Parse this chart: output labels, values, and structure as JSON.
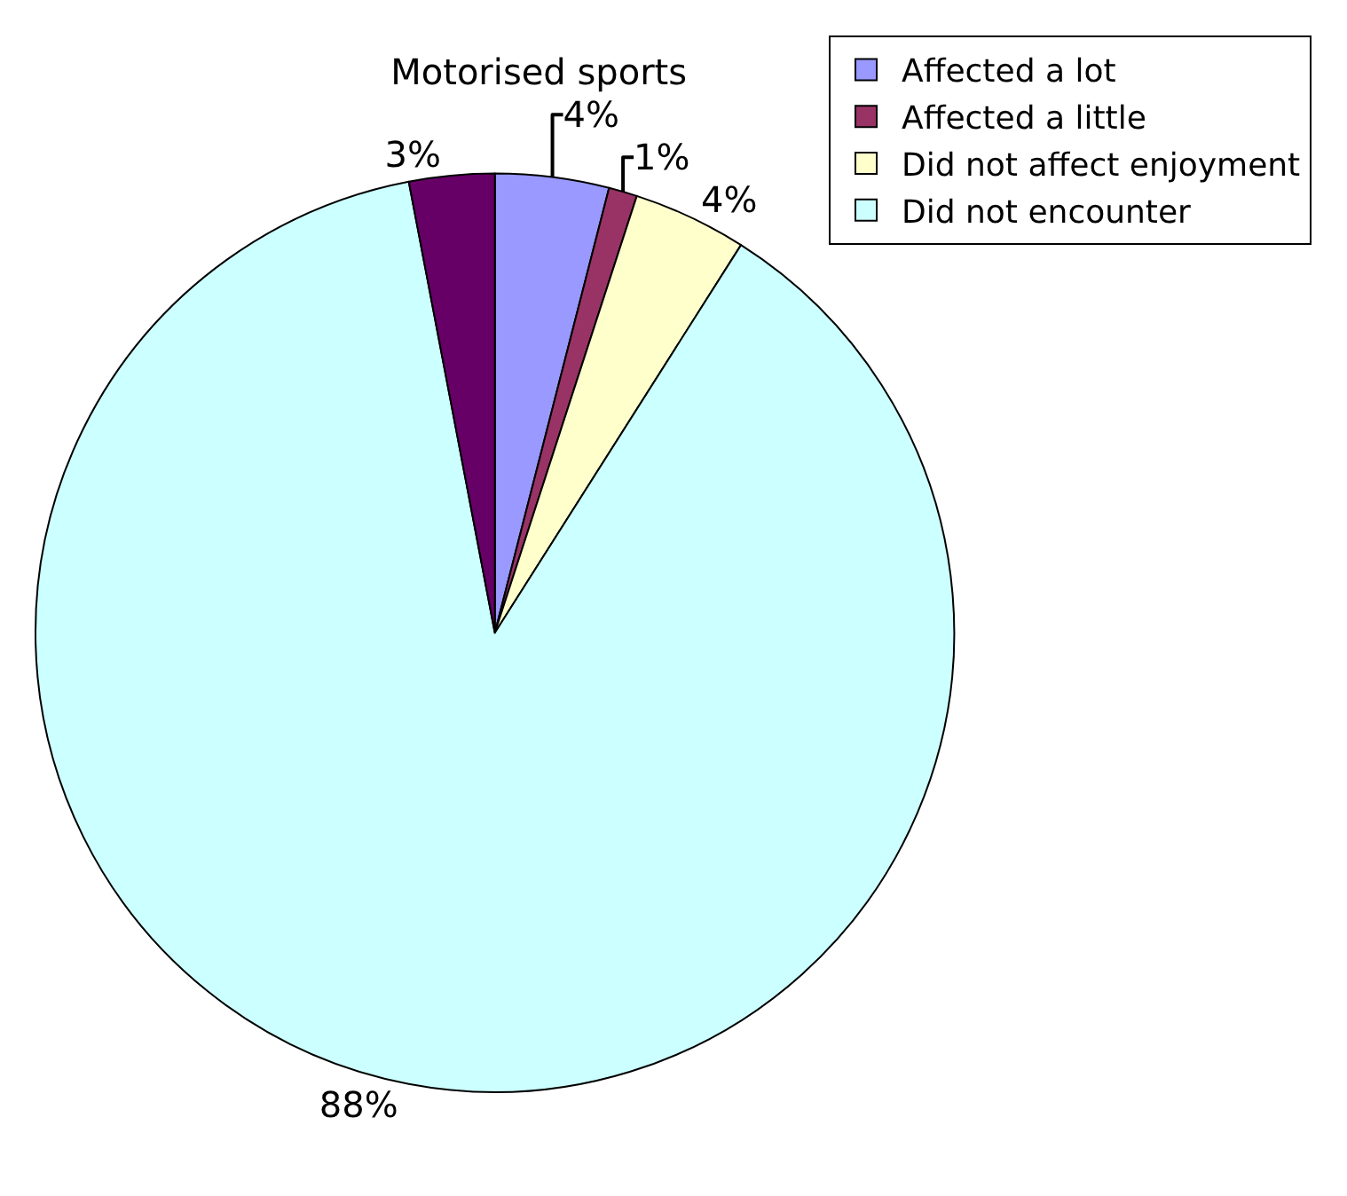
{
  "chart_data": {
    "type": "pie",
    "title": "Motorised sports",
    "categories": [
      "Affected a lot",
      "Affected a little",
      "Did not affect enjoyment",
      "Did not encounter",
      null
    ],
    "values": [
      4,
      1,
      4,
      88,
      3
    ],
    "colors": [
      "#9999ff",
      "#993366",
      "#ffffcc",
      "#ccffff",
      "#660066"
    ],
    "value_labels": [
      "4%",
      "1%",
      "4%",
      "88%",
      "3%"
    ],
    "legend": "top right"
  }
}
